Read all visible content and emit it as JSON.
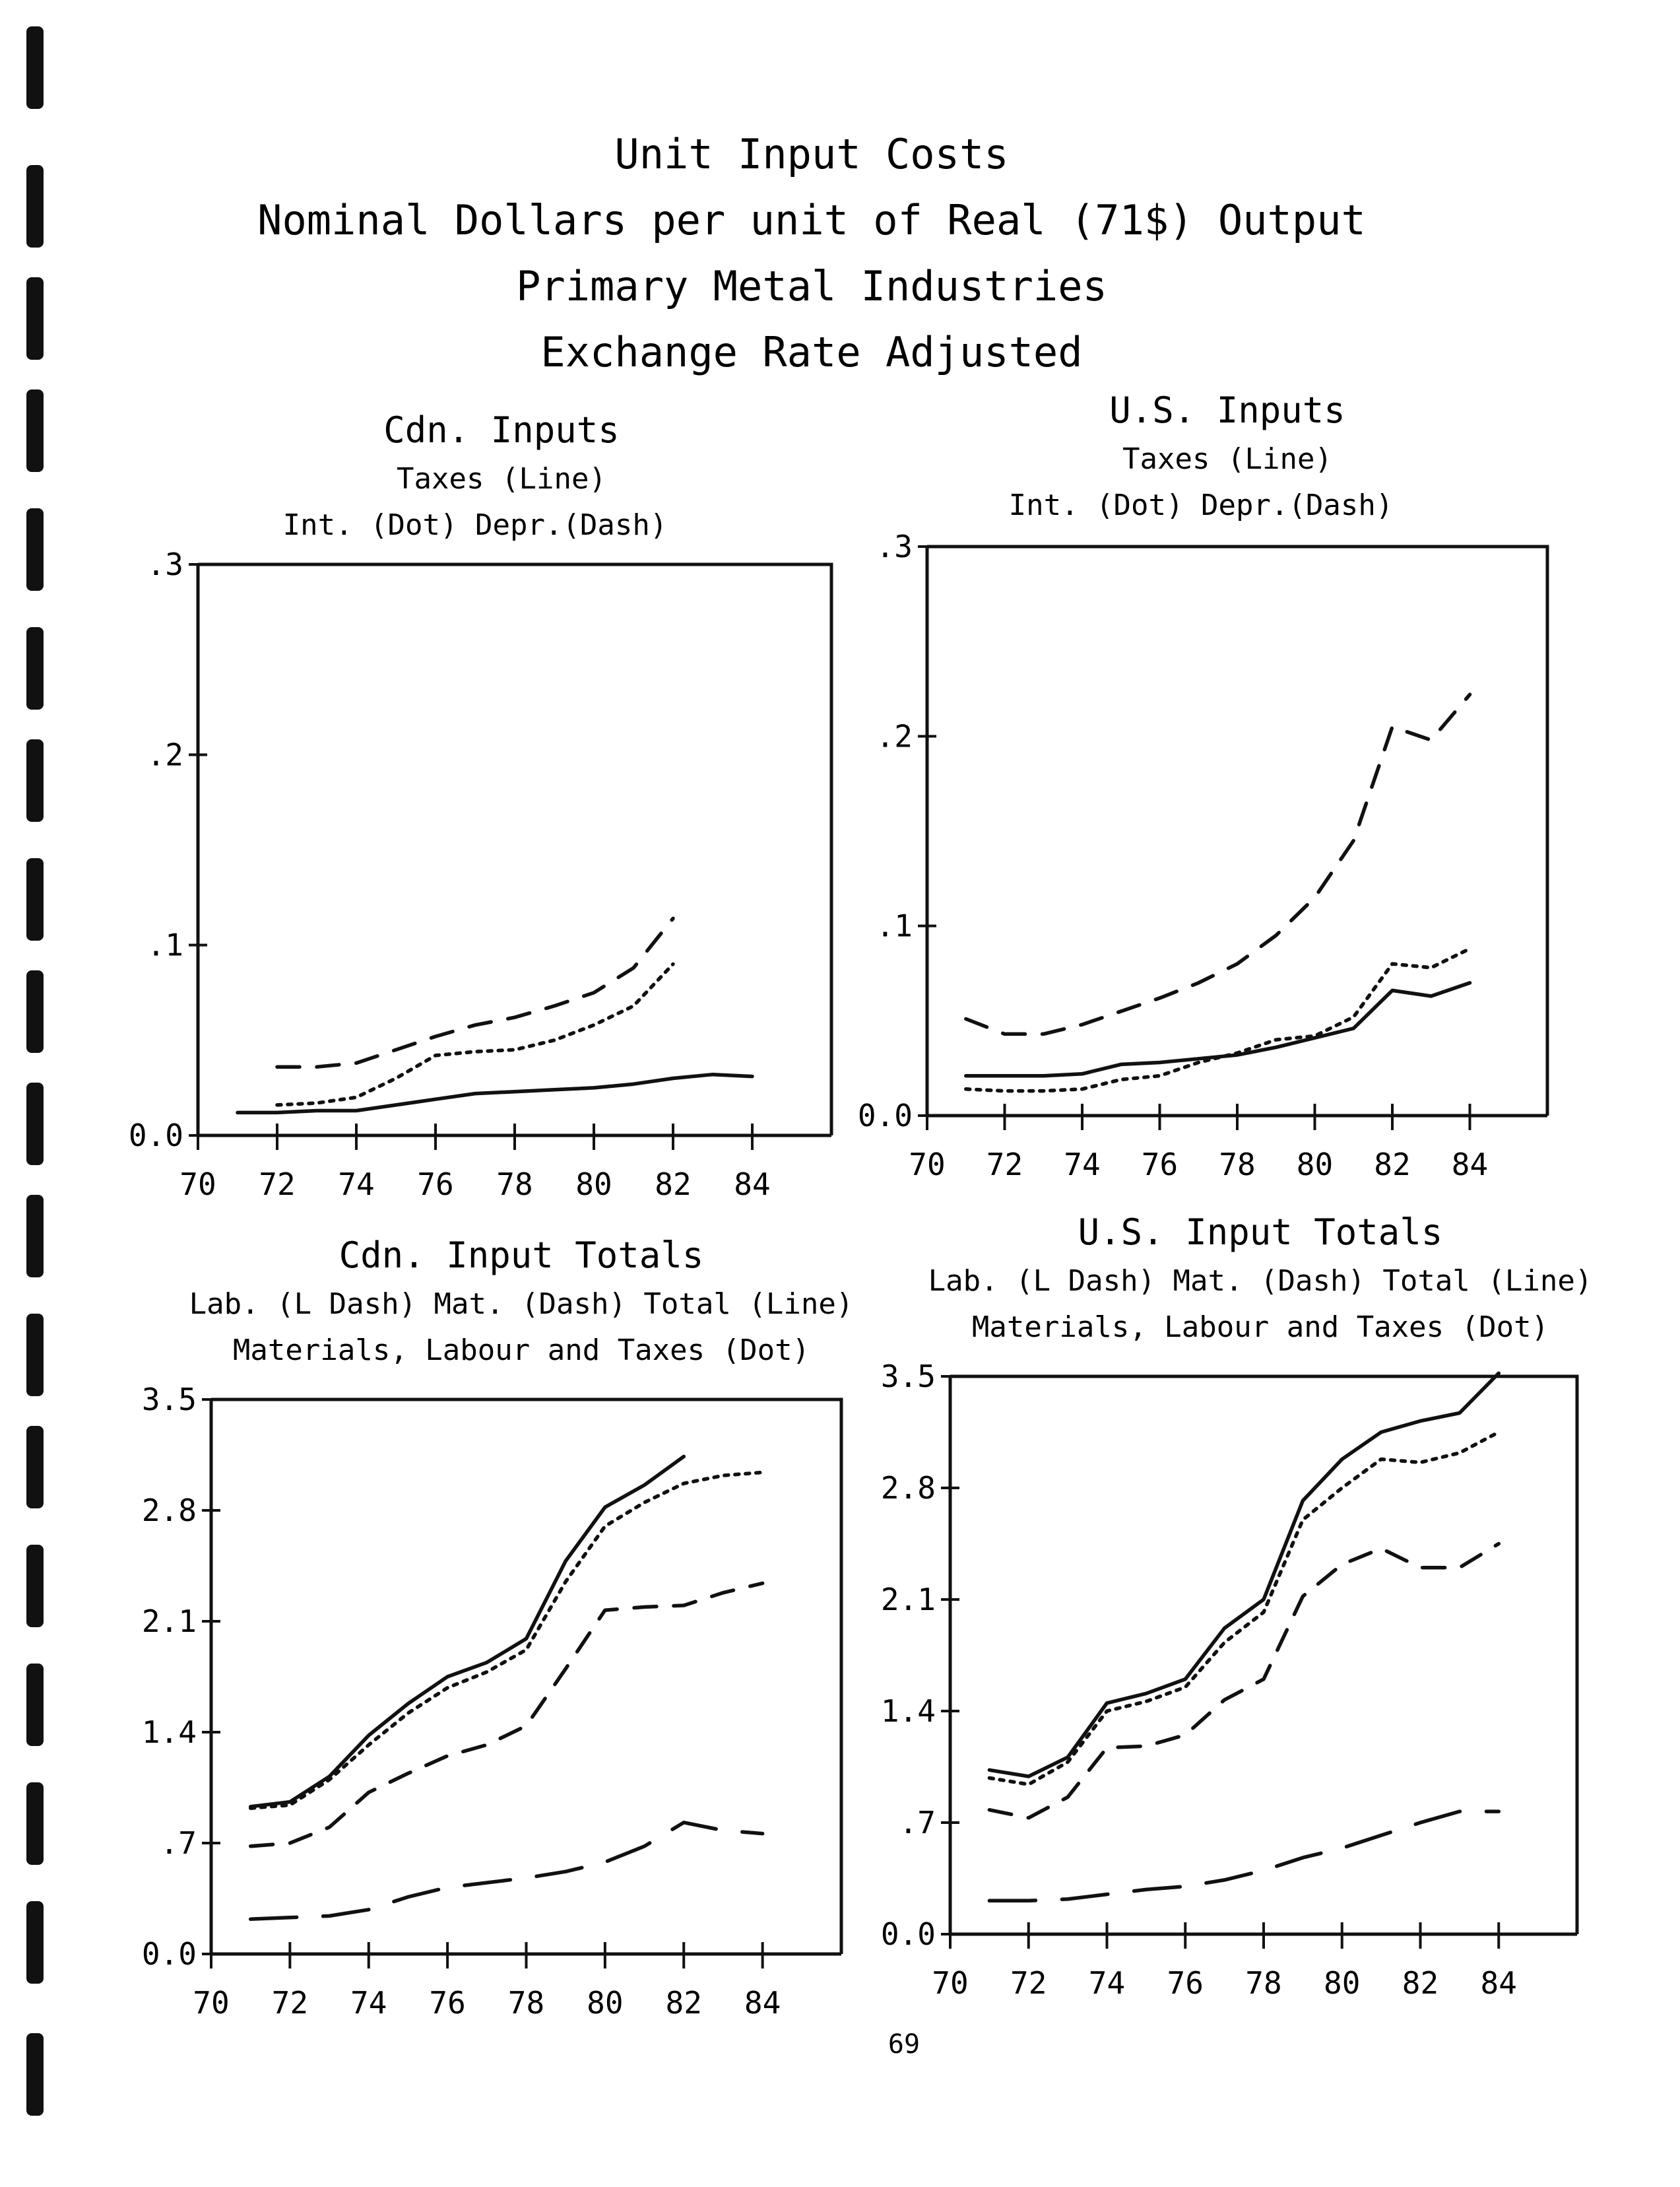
{
  "page": {
    "title_lines": [
      "Unit Input Costs",
      "Nominal Dollars per unit of Real (71$) Output",
      "Primary Metal Industries",
      "Exchange Rate Adjusted"
    ],
    "page_number": "69"
  },
  "chart_data": [
    {
      "type": "line",
      "title": "Cdn. Inputs",
      "subtitle_lines": [
        "Taxes (Line)"
      ],
      "legend_line": [
        "Int. (Dot)",
        "Depr.(Dash)"
      ],
      "xlabel": "",
      "ylabel": "",
      "xlim": [
        70,
        86
      ],
      "ylim": [
        0,
        0.3
      ],
      "x_ticks": [
        70,
        72,
        74,
        76,
        78,
        80,
        82,
        84
      ],
      "x_tick_labels": [
        "70",
        "72",
        "74",
        "76",
        "78",
        "80",
        "82",
        "84"
      ],
      "y_ticks": [
        0,
        0.1,
        0.2,
        0.3
      ],
      "y_tick_labels": [
        "0.0",
        ".1",
        ".2",
        ".3"
      ],
      "grid": false,
      "series": [
        {
          "name": "Taxes (Line)",
          "style": "solid",
          "x": [
            71,
            72,
            73,
            74,
            75,
            76,
            77,
            78,
            79,
            80,
            81,
            82,
            83,
            84
          ],
          "y": [
            0.012,
            0.012,
            0.013,
            0.013,
            0.016,
            0.019,
            0.022,
            0.023,
            0.024,
            0.025,
            0.027,
            0.03,
            0.032,
            0.031
          ]
        },
        {
          "name": "Int. (Dot)",
          "style": "dot",
          "x": [
            72,
            73,
            74,
            75,
            76,
            77,
            78,
            79,
            80,
            81,
            82
          ],
          "y": [
            0.016,
            0.017,
            0.02,
            0.03,
            0.042,
            0.044,
            0.045,
            0.05,
            0.058,
            0.068,
            0.09
          ]
        },
        {
          "name": "Depr.(Dash)",
          "style": "dash",
          "x": [
            72,
            73,
            74,
            75,
            76,
            77,
            78,
            79,
            80,
            81,
            82
          ],
          "y": [
            0.036,
            0.036,
            0.038,
            0.045,
            0.052,
            0.058,
            0.062,
            0.068,
            0.075,
            0.088,
            0.114
          ]
        }
      ]
    },
    {
      "type": "line",
      "title": "U.S. Inputs",
      "subtitle_lines": [
        "Taxes (Line)"
      ],
      "legend_line": [
        "Int. (Dot)",
        "Depr.(Dash)"
      ],
      "xlabel": "",
      "ylabel": "",
      "xlim": [
        70,
        86
      ],
      "ylim": [
        0,
        0.3
      ],
      "x_ticks": [
        70,
        72,
        74,
        76,
        78,
        80,
        82,
        84
      ],
      "x_tick_labels": [
        "70",
        "72",
        "74",
        "76",
        "78",
        "80",
        "82",
        "84"
      ],
      "y_ticks": [
        0,
        0.1,
        0.2,
        0.3
      ],
      "y_tick_labels": [
        "0.0",
        ".1",
        ".2",
        ".3"
      ],
      "grid": false,
      "series": [
        {
          "name": "Taxes (Line)",
          "style": "solid",
          "x": [
            71,
            72,
            73,
            74,
            75,
            76,
            77,
            78,
            79,
            80,
            81,
            82,
            83,
            84
          ],
          "y": [
            0.021,
            0.021,
            0.021,
            0.022,
            0.027,
            0.028,
            0.03,
            0.032,
            0.036,
            0.041,
            0.046,
            0.066,
            0.063,
            0.07
          ]
        },
        {
          "name": "Int. (Dot)",
          "style": "dot",
          "x": [
            71,
            72,
            73,
            74,
            75,
            76,
            77,
            78,
            79,
            80,
            81,
            82,
            83,
            84
          ],
          "y": [
            0.014,
            0.013,
            0.013,
            0.014,
            0.019,
            0.021,
            0.028,
            0.033,
            0.04,
            0.042,
            0.052,
            0.08,
            0.078,
            0.088
          ]
        },
        {
          "name": "Depr.(Dash)",
          "style": "dash",
          "x": [
            71,
            72,
            73,
            74,
            75,
            76,
            77,
            78,
            79,
            80,
            81,
            82,
            83,
            84
          ],
          "y": [
            0.051,
            0.043,
            0.043,
            0.048,
            0.055,
            0.062,
            0.07,
            0.08,
            0.095,
            0.115,
            0.145,
            0.205,
            0.198,
            0.222
          ]
        }
      ]
    },
    {
      "type": "line",
      "title": "Cdn. Input Totals",
      "subtitle_lines": [
        "Materials, Labour and Taxes (Dot)"
      ],
      "legend_line": [
        "Lab. (L Dash)",
        "Mat. (Dash)",
        "Total (Line)"
      ],
      "xlabel": "",
      "ylabel": "",
      "xlim": [
        70,
        86
      ],
      "ylim": [
        0,
        3.5
      ],
      "x_ticks": [
        70,
        72,
        74,
        76,
        78,
        80,
        82,
        84
      ],
      "x_tick_labels": [
        "70",
        "72",
        "74",
        "76",
        "78",
        "80",
        "82",
        "84"
      ],
      "y_ticks": [
        0,
        0.7,
        1.4,
        2.1,
        2.8,
        3.5
      ],
      "y_tick_labels": [
        "0.0",
        ".7",
        "1.4",
        "2.1",
        "2.8",
        "3.5"
      ],
      "grid": false,
      "series": [
        {
          "name": "Lab. (L Dash)",
          "style": "longdash",
          "x": [
            71,
            72,
            73,
            74,
            75,
            76,
            77,
            78,
            79,
            80,
            81,
            82,
            83,
            84
          ],
          "y": [
            0.22,
            0.23,
            0.24,
            0.28,
            0.36,
            0.42,
            0.45,
            0.48,
            0.52,
            0.58,
            0.68,
            0.83,
            0.78,
            0.76
          ]
        },
        {
          "name": "Mat. (Dash)",
          "style": "dash",
          "x": [
            71,
            72,
            73,
            74,
            75,
            76,
            77,
            78,
            79,
            80,
            81,
            82,
            83,
            84
          ],
          "y": [
            0.68,
            0.7,
            0.8,
            1.02,
            1.14,
            1.25,
            1.32,
            1.44,
            1.8,
            2.17,
            2.19,
            2.2,
            2.28,
            2.34
          ]
        },
        {
          "name": "Materials, Labour and Taxes (Dot)",
          "style": "dot",
          "x": [
            71,
            72,
            73,
            74,
            75,
            76,
            77,
            78,
            79,
            80,
            81,
            82,
            83,
            84
          ],
          "y": [
            0.92,
            0.94,
            1.1,
            1.32,
            1.52,
            1.68,
            1.78,
            1.92,
            2.35,
            2.7,
            2.85,
            2.97,
            3.02,
            3.04
          ]
        },
        {
          "name": "Total (Line)",
          "style": "solid",
          "x": [
            71,
            72,
            73,
            74,
            75,
            76,
            77,
            78,
            79,
            80,
            81,
            82
          ],
          "y": [
            0.93,
            0.96,
            1.12,
            1.38,
            1.58,
            1.75,
            1.84,
            1.99,
            2.48,
            2.82,
            2.96,
            3.14
          ]
        }
      ]
    },
    {
      "type": "line",
      "title": "U.S. Input Totals",
      "subtitle_lines": [
        "Materials, Labour and Taxes (Dot)"
      ],
      "legend_line": [
        "Lab. (L Dash)",
        "Mat. (Dash)",
        "Total (Line)"
      ],
      "xlabel": "",
      "ylabel": "",
      "xlim": [
        70,
        86
      ],
      "ylim": [
        0,
        3.5
      ],
      "x_ticks": [
        70,
        72,
        74,
        76,
        78,
        80,
        82,
        84
      ],
      "x_tick_labels": [
        "70",
        "72",
        "74",
        "76",
        "78",
        "80",
        "82",
        "84"
      ],
      "y_ticks": [
        0,
        0.7,
        1.4,
        2.1,
        2.8,
        3.5
      ],
      "y_tick_labels": [
        "0.0",
        ".7",
        "1.4",
        "2.1",
        "2.8",
        "3.5"
      ],
      "grid": false,
      "series": [
        {
          "name": "Lab. (L Dash)",
          "style": "longdash",
          "x": [
            71,
            72,
            73,
            74,
            75,
            76,
            77,
            78,
            79,
            80,
            81,
            82,
            83,
            84
          ],
          "y": [
            0.21,
            0.21,
            0.22,
            0.25,
            0.28,
            0.3,
            0.34,
            0.4,
            0.48,
            0.54,
            0.62,
            0.7,
            0.77,
            0.77
          ]
        },
        {
          "name": "Mat. (Dash)",
          "style": "dash",
          "x": [
            71,
            72,
            73,
            74,
            75,
            76,
            77,
            78,
            79,
            80,
            81,
            82,
            83,
            84
          ],
          "y": [
            0.78,
            0.73,
            0.86,
            1.17,
            1.18,
            1.25,
            1.47,
            1.6,
            2.12,
            2.32,
            2.42,
            2.3,
            2.3,
            2.45
          ]
        },
        {
          "name": "Materials, Labour and Taxes (Dot)",
          "style": "dot",
          "x": [
            71,
            72,
            73,
            74,
            75,
            76,
            77,
            78,
            79,
            80,
            81,
            82,
            83,
            84
          ],
          "y": [
            0.98,
            0.94,
            1.08,
            1.4,
            1.46,
            1.55,
            1.83,
            2.02,
            2.6,
            2.8,
            2.98,
            2.96,
            3.02,
            3.15
          ]
        },
        {
          "name": "Total (Line)",
          "style": "solid",
          "x": [
            71,
            72,
            73,
            74,
            75,
            76,
            77,
            78,
            79,
            80,
            81,
            82,
            83,
            84
          ],
          "y": [
            1.03,
            0.99,
            1.11,
            1.45,
            1.51,
            1.6,
            1.92,
            2.1,
            2.72,
            2.98,
            3.15,
            3.22,
            3.27,
            3.52
          ]
        }
      ]
    }
  ]
}
